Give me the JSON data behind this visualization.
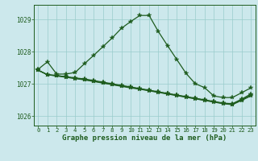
{
  "title": "Graphe pression niveau de la mer (hPa)",
  "background_color": "#cce8ec",
  "line_color": "#1e5c1e",
  "grid_color": "#99cccc",
  "xlim": [
    -0.5,
    23.5
  ],
  "ylim": [
    1025.7,
    1029.45
  ],
  "yticks": [
    1026,
    1027,
    1028,
    1029
  ],
  "ytick_labels": [
    "1026",
    "1027",
    "1028",
    "1029"
  ],
  "xticks": [
    0,
    1,
    2,
    3,
    4,
    5,
    6,
    7,
    8,
    9,
    10,
    11,
    12,
    13,
    14,
    15,
    16,
    17,
    18,
    19,
    20,
    21,
    22,
    23
  ],
  "series": [
    [
      1027.45,
      1027.68,
      1027.3,
      1027.3,
      1027.35,
      1027.62,
      1027.88,
      1028.15,
      1028.42,
      1028.72,
      1028.93,
      1029.12,
      1029.12,
      1028.62,
      1028.18,
      1027.75,
      1027.32,
      1027.0,
      1026.88,
      1026.62,
      1026.57,
      1026.57,
      1026.72,
      1026.87
    ],
    [
      1027.42,
      1027.28,
      1027.25,
      1027.22,
      1027.18,
      1027.15,
      1027.1,
      1027.05,
      1027.0,
      1026.95,
      1026.9,
      1026.85,
      1026.8,
      1026.75,
      1026.7,
      1026.65,
      1026.6,
      1026.55,
      1026.5,
      1026.45,
      1026.4,
      1026.38,
      1026.52,
      1026.68
    ],
    [
      1027.42,
      1027.28,
      1027.24,
      1027.2,
      1027.16,
      1027.12,
      1027.07,
      1027.02,
      1026.97,
      1026.92,
      1026.87,
      1026.83,
      1026.78,
      1026.73,
      1026.68,
      1026.63,
      1026.58,
      1026.53,
      1026.48,
      1026.43,
      1026.38,
      1026.35,
      1026.48,
      1026.62
    ],
    [
      1027.42,
      1027.28,
      1027.26,
      1027.21,
      1027.17,
      1027.13,
      1027.08,
      1027.03,
      1026.98,
      1026.93,
      1026.89,
      1026.84,
      1026.79,
      1026.74,
      1026.69,
      1026.64,
      1026.59,
      1026.54,
      1026.49,
      1026.44,
      1026.39,
      1026.36,
      1026.5,
      1026.65
    ]
  ],
  "title_fontsize": 6.5,
  "tick_fontsize": 5.5,
  "label_fontsize": 5.2
}
